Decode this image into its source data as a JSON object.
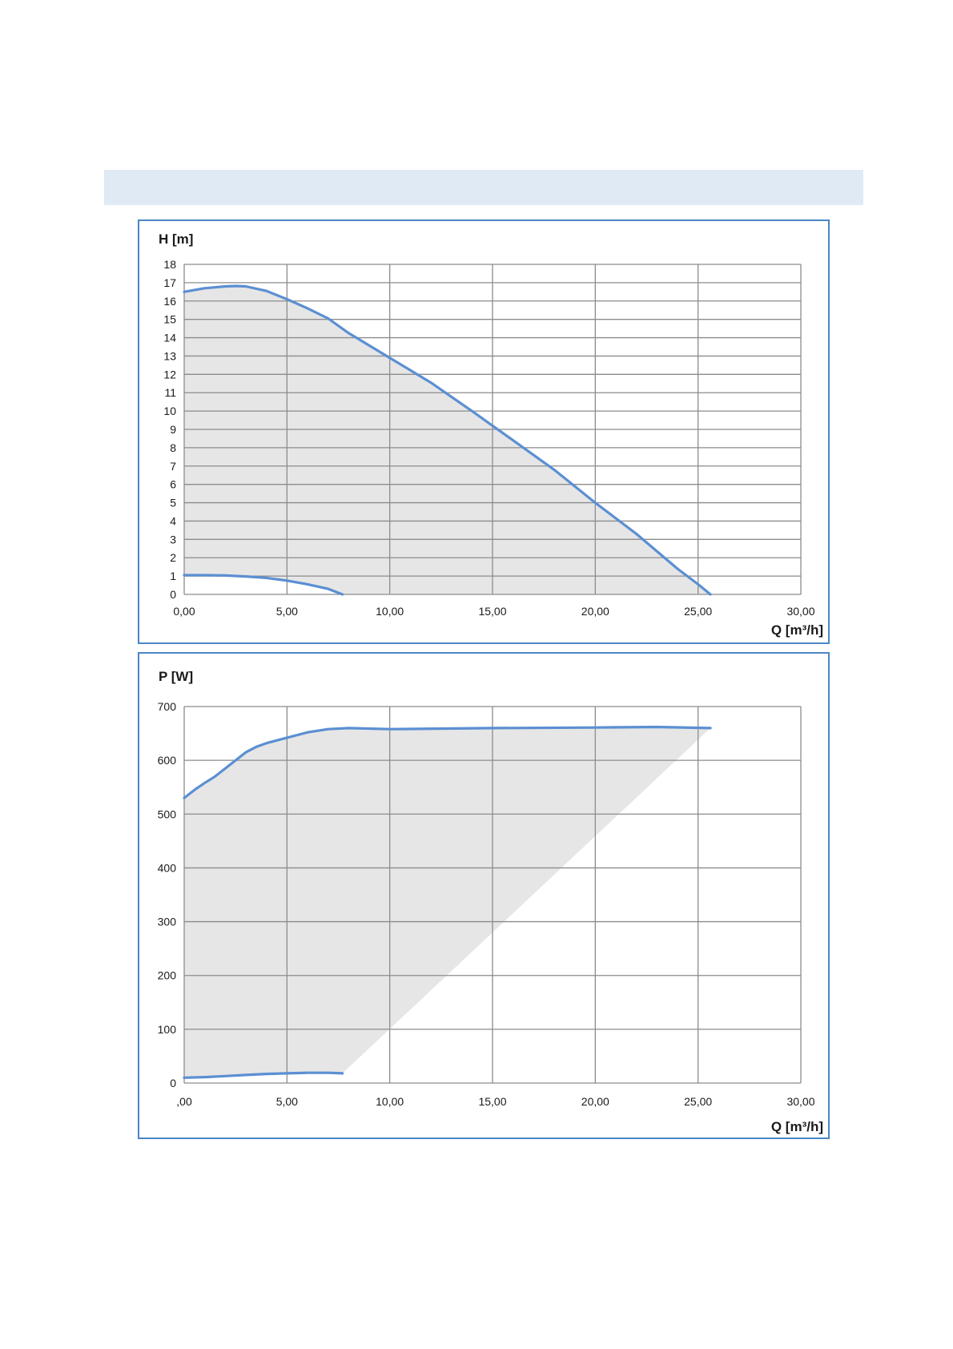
{
  "chart_data": [
    {
      "type": "area",
      "ylabel": "H [m]",
      "xlabel": "Q [m³/h]",
      "xlim": [
        0,
        30
      ],
      "ylim": [
        0,
        18
      ],
      "grid": true,
      "x_tick_labels": [
        "0,00",
        "5,00",
        "10,00",
        "15,00",
        "20,00",
        "25,00",
        "30,00"
      ],
      "y_tick_labels": [
        "0",
        "1",
        "2",
        "3",
        "4",
        "5",
        "6",
        "7",
        "8",
        "9",
        "10",
        "11",
        "12",
        "13",
        "14",
        "15",
        "16",
        "17",
        "18"
      ],
      "series": [
        {
          "role": "max",
          "points": [
            [
              0,
              16.5
            ],
            [
              1,
              16.7
            ],
            [
              2,
              16.8
            ],
            [
              2.5,
              16.82
            ],
            [
              3,
              16.8
            ],
            [
              4,
              16.55
            ],
            [
              5,
              16.1
            ],
            [
              6,
              15.6
            ],
            [
              7,
              15.05
            ],
            [
              8,
              14.25
            ],
            [
              10,
              12.9
            ],
            [
              12,
              11.55
            ],
            [
              14,
              10.0
            ],
            [
              15,
              9.2
            ],
            [
              16,
              8.4
            ],
            [
              18,
              6.8
            ],
            [
              20,
              5.0
            ],
            [
              22,
              3.3
            ],
            [
              24,
              1.4
            ],
            [
              25,
              0.55
            ],
            [
              25.6,
              0
            ]
          ]
        },
        {
          "role": "min",
          "points": [
            [
              0,
              1.05
            ],
            [
              1,
              1.05
            ],
            [
              2,
              1.03
            ],
            [
              3,
              0.98
            ],
            [
              4,
              0.9
            ],
            [
              5,
              0.75
            ],
            [
              6,
              0.55
            ],
            [
              7,
              0.3
            ],
            [
              7.7,
              0
            ]
          ]
        }
      ],
      "shaded_region": "between curves"
    },
    {
      "type": "area",
      "ylabel": "P [W]",
      "xlabel": "Q [m³/h]",
      "xlim": [
        0,
        30
      ],
      "ylim": [
        0,
        700
      ],
      "grid": true,
      "x_tick_labels": [
        ",00",
        "5,00",
        "10,00",
        "15,00",
        "20,00",
        "25,00",
        "30,00"
      ],
      "y_tick_labels": [
        "0",
        "100",
        "200",
        "300",
        "400",
        "500",
        "600",
        "700"
      ],
      "series": [
        {
          "role": "max",
          "points": [
            [
              0,
              530
            ],
            [
              0.5,
              545
            ],
            [
              1,
              558
            ],
            [
              1.5,
              570
            ],
            [
              2,
              585
            ],
            [
              2.5,
              600
            ],
            [
              3,
              615
            ],
            [
              3.5,
              625
            ],
            [
              4,
              632
            ],
            [
              5,
              642
            ],
            [
              6,
              652
            ],
            [
              7,
              658
            ],
            [
              8,
              660
            ],
            [
              10,
              658
            ],
            [
              15,
              660
            ],
            [
              20,
              661
            ],
            [
              23,
              662
            ],
            [
              25.6,
              660
            ]
          ]
        },
        {
          "role": "min",
          "points": [
            [
              0,
              10
            ],
            [
              1,
              11
            ],
            [
              2,
              13
            ],
            [
              3,
              15
            ],
            [
              4,
              17
            ],
            [
              5,
              18
            ],
            [
              6,
              19
            ],
            [
              7,
              19
            ],
            [
              7.7,
              18
            ]
          ]
        }
      ],
      "shaded_region": "between curves"
    }
  ]
}
